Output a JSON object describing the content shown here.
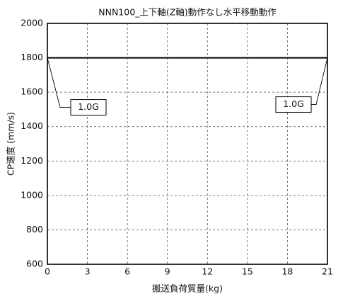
{
  "chart_data": {
    "type": "line",
    "title": "NNN100_上下軸(Z軸)動作なし水平移動動作",
    "x_label": "搬送負荷質量(kg)",
    "y_label": "CP速度 (mm/s)",
    "x": [
      0,
      21
    ],
    "values": [
      1800,
      1800
    ],
    "color": "#000000",
    "xlim": [
      0,
      21
    ],
    "xticks": [
      0,
      3,
      6,
      9,
      12,
      15,
      18,
      21
    ],
    "ylim": [
      600,
      2000
    ],
    "yticks": [
      600,
      800,
      1000,
      1200,
      1400,
      1600,
      1800,
      2000
    ],
    "grid": true,
    "annotations": [
      {
        "text": "1.0G",
        "x": 0,
        "y": 1800
      },
      {
        "text": "1.0G",
        "x": 21,
        "y": 1800
      }
    ]
  }
}
